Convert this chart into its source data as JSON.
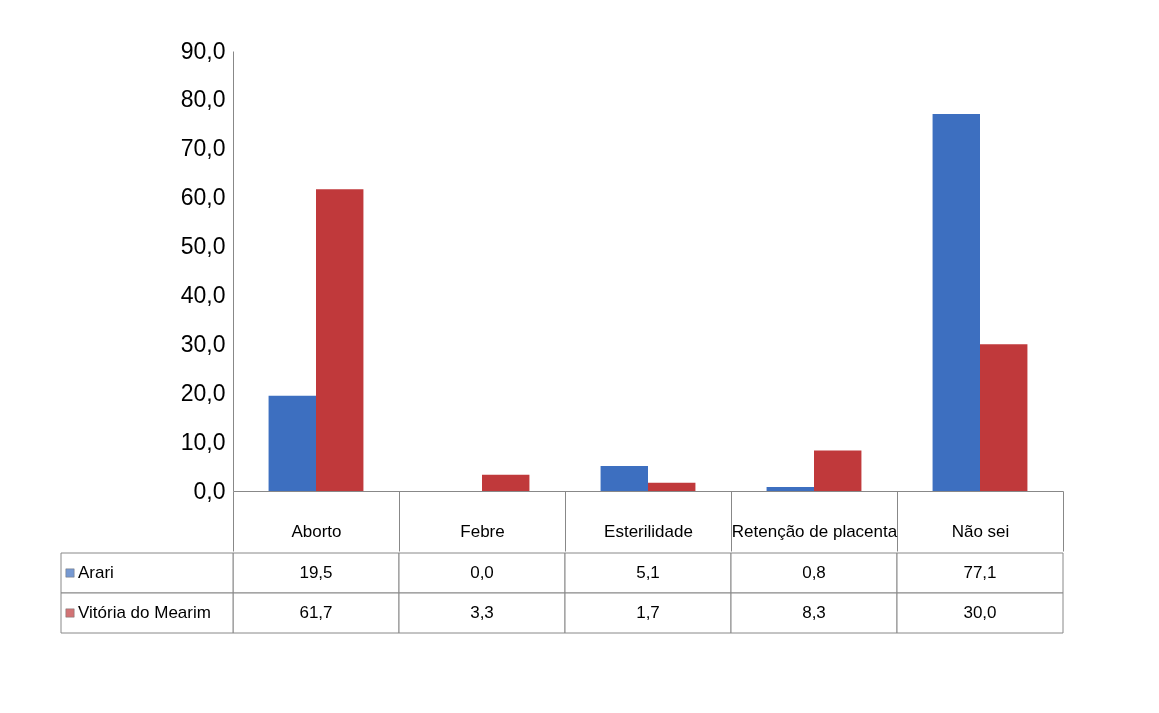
{
  "chart_data": {
    "type": "bar",
    "categories": [
      "Aborto",
      "Febre",
      "Esterilidade",
      "Retenção de placenta",
      "Não sei"
    ],
    "series": [
      {
        "name": "Arari",
        "color": "#3d6fc0",
        "values": [
          19.5,
          0.0,
          5.1,
          0.8,
          77.1
        ],
        "value_labels": [
          "19,5",
          "0,0",
          "5,1",
          "0,8",
          "77,1"
        ]
      },
      {
        "name": "Vitória do Mearim",
        "color": "#c0393b",
        "values": [
          61.7,
          3.3,
          1.7,
          8.3,
          30.0
        ],
        "value_labels": [
          "61,7",
          "3,3",
          "1,7",
          "8,3",
          "30,0"
        ]
      }
    ],
    "ylim": [
      0,
      90
    ],
    "yticks": [
      {
        "value": 0,
        "label": "0,0"
      },
      {
        "value": 10,
        "label": "10,0"
      },
      {
        "value": 20,
        "label": "20,0"
      },
      {
        "value": 30,
        "label": "30,0"
      },
      {
        "value": 40,
        "label": "40,0"
      },
      {
        "value": 50,
        "label": "50,0"
      },
      {
        "value": 60,
        "label": "60,0"
      },
      {
        "value": 70,
        "label": "70,0"
      },
      {
        "value": 80,
        "label": "80,0"
      },
      {
        "value": 90,
        "label": "90,0"
      }
    ],
    "grid": false,
    "legend": "bottom left"
  }
}
